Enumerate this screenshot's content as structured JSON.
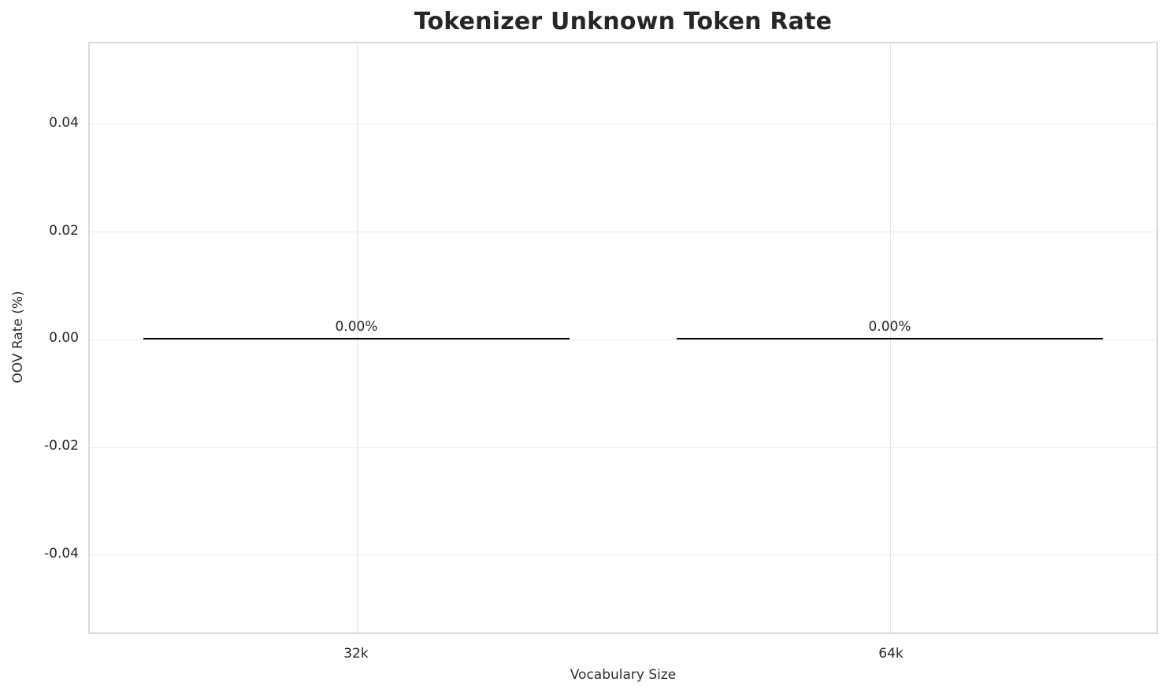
{
  "chart_data": {
    "type": "bar",
    "title": "Tokenizer Unknown Token Rate",
    "xlabel": "Vocabulary Size",
    "ylabel": "OOV Rate (%)",
    "categories": [
      "32k",
      "64k"
    ],
    "values": [
      0.0,
      0.0
    ],
    "bar_value_labels": [
      "0.00%",
      "0.00%"
    ],
    "bar_width_fraction": 0.8,
    "yticks": {
      "labels": [
        "0.04",
        "0.02",
        "0.00",
        "-0.02",
        "-0.04"
      ],
      "values": [
        0.04,
        0.02,
        0.0,
        -0.02,
        -0.04
      ]
    },
    "ylim": [
      -0.055,
      0.055
    ],
    "grid": true,
    "legend_position": "none",
    "colors": {
      "bar_edge": "#000000",
      "gridline": "#ebebeb",
      "spine": "#d9d9d9",
      "text": "#262626",
      "background": "#ffffff"
    }
  }
}
